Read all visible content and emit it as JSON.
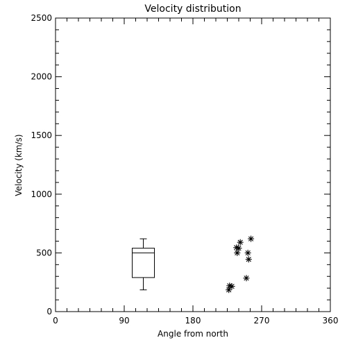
{
  "chart_data": {
    "type": "scatter",
    "title": "Velocity distribution",
    "xlabel": "Angle from north",
    "ylabel": "Velocity (km/s)",
    "xlim": [
      0,
      360
    ],
    "ylim": [
      0,
      2500
    ],
    "xticks": [
      0,
      90,
      180,
      270,
      360
    ],
    "yticks": [
      0,
      500,
      1000,
      1500,
      2000,
      2500
    ],
    "x_minor_step": 15,
    "y_minor_step": 100,
    "grid": false,
    "marker": "asterisk",
    "boxplot": {
      "x": 115,
      "whisker_low": 185,
      "q1": 290,
      "median": 500,
      "q3": 540,
      "whisker_high": 620
    },
    "points": [
      {
        "x": 227,
        "y": 185
      },
      {
        "x": 228,
        "y": 220
      },
      {
        "x": 231,
        "y": 215
      },
      {
        "x": 237,
        "y": 545
      },
      {
        "x": 238,
        "y": 500
      },
      {
        "x": 240,
        "y": 540
      },
      {
        "x": 242,
        "y": 590
      },
      {
        "x": 250,
        "y": 285
      },
      {
        "x": 252,
        "y": 500
      },
      {
        "x": 253,
        "y": 445
      },
      {
        "x": 256,
        "y": 620
      }
    ]
  }
}
